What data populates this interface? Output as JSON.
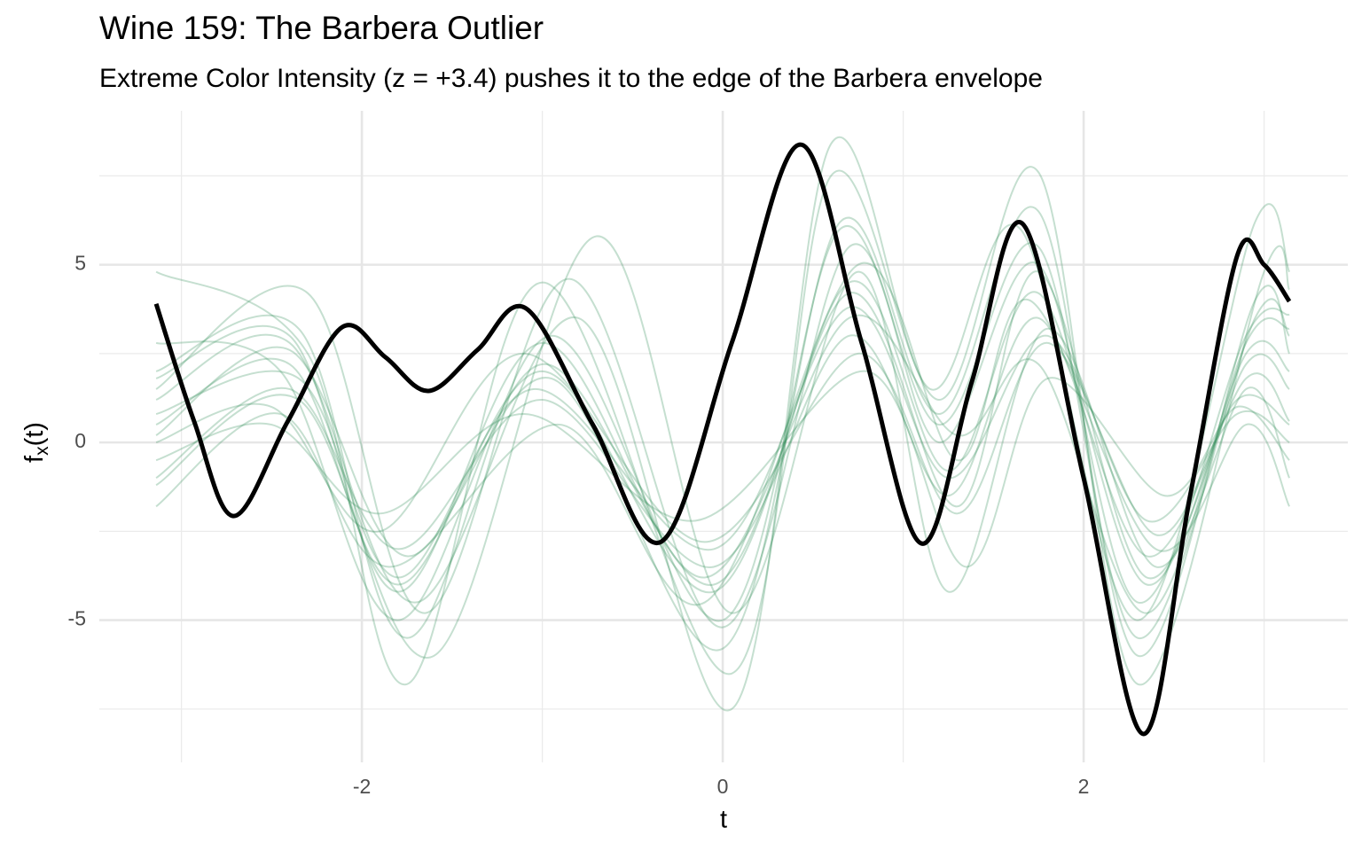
{
  "chart_data": {
    "type": "line",
    "title": "Wine 159: The Barbera Outlier",
    "subtitle": "Extreme Color Intensity (z = +3.4) pushes it to the edge of the Barbera envelope",
    "xlabel": "t",
    "ylabel": [
      "f",
      "x",
      "(t)"
    ],
    "xlim": [
      -3.455,
      3.464
    ],
    "ylim": [
      -9.0,
      9.33
    ],
    "xticks": [
      -2,
      0,
      2
    ],
    "yticks": [
      -5,
      0,
      5
    ],
    "minor_xticks": [
      -3,
      -1,
      1,
      3
    ],
    "minor_yticks": [
      -7.5,
      -2.5,
      2.5,
      7.5
    ],
    "grid": true,
    "series": [
      {
        "color": "#2e8b57",
        "opacity": 0.28,
        "width": 2,
        "x": [
          -3.14,
          -2.4,
          -1.8,
          -1.0,
          -0.05,
          0.7,
          1.25,
          1.75,
          2.35,
          2.9,
          3.14
        ],
        "values": [
          0.5,
          2.2,
          -4.0,
          2.0,
          -4.2,
          4.5,
          -0.8,
          4.2,
          -4.0,
          2.5,
          2.0
        ]
      },
      {
        "color": "#2e8b57",
        "opacity": 0.28,
        "width": 2,
        "x": [
          -3.14,
          -2.4,
          -1.8,
          -1.0,
          -0.05,
          0.7,
          1.25,
          1.75,
          2.35,
          2.9,
          3.14
        ],
        "values": [
          -1.0,
          1.5,
          -3.0,
          1.2,
          -3.5,
          3.0,
          -1.5,
          3.5,
          -3.2,
          1.8,
          0.6
        ]
      },
      {
        "color": "#2e8b57",
        "opacity": 0.28,
        "width": 2,
        "x": [
          -3.14,
          -2.35,
          -1.75,
          -0.95,
          0.0,
          0.65,
          1.2,
          1.75,
          2.3,
          2.95,
          3.14
        ],
        "values": [
          2.0,
          3.2,
          -5.5,
          3.0,
          -5.0,
          6.0,
          0.5,
          5.5,
          -5.5,
          3.5,
          3.0
        ]
      },
      {
        "color": "#2e8b57",
        "opacity": 0.28,
        "width": 2,
        "x": [
          -3.14,
          -2.5,
          -1.9,
          -1.1,
          -0.1,
          0.75,
          1.3,
          1.8,
          2.4,
          2.85,
          3.14
        ],
        "values": [
          0.0,
          1.0,
          -2.5,
          2.5,
          -2.8,
          2.5,
          -2.0,
          2.8,
          -2.6,
          1.2,
          0.5
        ]
      },
      {
        "color": "#2e8b57",
        "opacity": 0.28,
        "width": 2,
        "x": [
          -3.14,
          -2.3,
          -1.75,
          -1.0,
          0.05,
          0.6,
          1.2,
          1.75,
          2.3,
          3.0,
          3.14
        ],
        "values": [
          4.8,
          2.5,
          -6.8,
          4.5,
          -6.5,
          7.5,
          1.2,
          7.6,
          -6.8,
          4.8,
          4.3
        ]
      },
      {
        "color": "#2e8b57",
        "opacity": 0.28,
        "width": 2,
        "x": [
          -3.14,
          -2.45,
          -1.85,
          -0.9,
          -0.1,
          0.75,
          1.3,
          1.7,
          2.4,
          2.9,
          3.14
        ],
        "values": [
          -1.8,
          0.8,
          -3.5,
          0.5,
          -4.5,
          5.0,
          -0.5,
          4.0,
          -3.0,
          0.5,
          -1.8
        ]
      },
      {
        "color": "#2e8b57",
        "opacity": 0.28,
        "width": 2,
        "x": [
          -3.14,
          -2.4,
          -1.7,
          -0.8,
          0.05,
          0.6,
          1.15,
          1.65,
          2.3,
          2.95,
          3.14
        ],
        "values": [
          1.2,
          2.8,
          -4.5,
          3.5,
          -7.5,
          8.4,
          1.5,
          6.0,
          -5.0,
          6.2,
          4.8
        ]
      },
      {
        "color": "#2e8b57",
        "opacity": 0.28,
        "width": 2,
        "x": [
          -3.14,
          -2.35,
          -1.8,
          -1.05,
          -0.05,
          0.7,
          1.25,
          1.8,
          2.35,
          2.85,
          3.14
        ],
        "values": [
          0.8,
          1.8,
          -3.8,
          1.5,
          -3.0,
          3.8,
          -1.0,
          3.0,
          -2.2,
          0.8,
          0.0
        ]
      },
      {
        "color": "#2e8b57",
        "opacity": 0.28,
        "width": 2,
        "x": [
          -3.14,
          -2.3,
          -1.65,
          -0.85,
          0.0,
          0.7,
          1.2,
          1.75,
          2.3,
          2.9,
          3.14
        ],
        "values": [
          1.5,
          4.2,
          -4.8,
          4.6,
          -5.2,
          5.5,
          0.0,
          5.0,
          -4.5,
          3.0,
          3.6
        ]
      },
      {
        "color": "#2e8b57",
        "opacity": 0.28,
        "width": 2,
        "x": [
          -3.14,
          -2.5,
          -1.9,
          -1.1,
          -0.15,
          0.8,
          1.35,
          1.8,
          2.45,
          2.85,
          3.14
        ],
        "values": [
          -0.5,
          0.5,
          -2.0,
          0.8,
          -2.2,
          2.0,
          -3.5,
          1.8,
          -1.5,
          1.0,
          -0.5
        ]
      },
      {
        "color": "#2e8b57",
        "opacity": 0.28,
        "width": 2,
        "x": [
          -3.14,
          -2.45,
          -1.8,
          -1.0,
          -0.05,
          0.7,
          1.3,
          1.75,
          2.35,
          2.9,
          3.14
        ],
        "values": [
          2.8,
          2.0,
          -5.0,
          2.2,
          -4.0,
          4.2,
          -1.8,
          4.8,
          -3.8,
          2.2,
          1.5
        ]
      },
      {
        "color": "#2e8b57",
        "opacity": 0.28,
        "width": 2,
        "x": [
          -3.14,
          -2.4,
          -1.75,
          -0.95,
          0.0,
          0.65,
          1.2,
          1.75,
          2.3,
          2.95,
          3.14
        ],
        "values": [
          0.2,
          2.6,
          -3.2,
          1.8,
          -5.8,
          6.2,
          0.8,
          6.5,
          -6.0,
          4.0,
          2.5
        ]
      },
      {
        "color": "#2e8b57",
        "opacity": 0.28,
        "width": 2,
        "x": [
          -3.14,
          -2.35,
          -1.6,
          -0.7,
          0.05,
          0.75,
          1.25,
          1.8,
          2.4,
          2.9,
          3.14
        ],
        "values": [
          -1.2,
          1.2,
          -6.0,
          5.8,
          -4.8,
          4.8,
          -4.2,
          3.2,
          -3.5,
          1.5,
          -1.0
        ]
      },
      {
        "color": "#2e8b57",
        "opacity": 0.28,
        "width": 2,
        "x": [
          -3.14,
          -2.4,
          -1.8,
          -1.0,
          -0.1,
          0.7,
          1.3,
          1.75,
          2.35,
          2.9,
          3.14
        ],
        "values": [
          1.8,
          3.0,
          -4.2,
          2.8,
          -3.8,
          3.5,
          0.2,
          2.2,
          -4.8,
          2.8,
          3.2
        ]
      },
      {
        "color": "#000000",
        "opacity": 1,
        "width": 5,
        "x": [
          -3.14,
          -2.93,
          -2.71,
          -2.41,
          -2.11,
          -1.87,
          -1.63,
          -1.36,
          -1.09,
          -0.72,
          -0.34,
          0.05,
          0.43,
          0.77,
          1.1,
          1.38,
          1.66,
          2.0,
          2.33,
          2.59,
          2.85,
          3.0,
          3.14
        ],
        "values": [
          3.9,
          0.6,
          -2.07,
          0.6,
          3.24,
          2.4,
          1.45,
          2.6,
          3.77,
          0.5,
          -2.79,
          2.8,
          8.38,
          2.8,
          -2.84,
          1.7,
          6.16,
          -1.0,
          -8.2,
          -1.5,
          5.24,
          5.0,
          3.97
        ]
      }
    ]
  }
}
